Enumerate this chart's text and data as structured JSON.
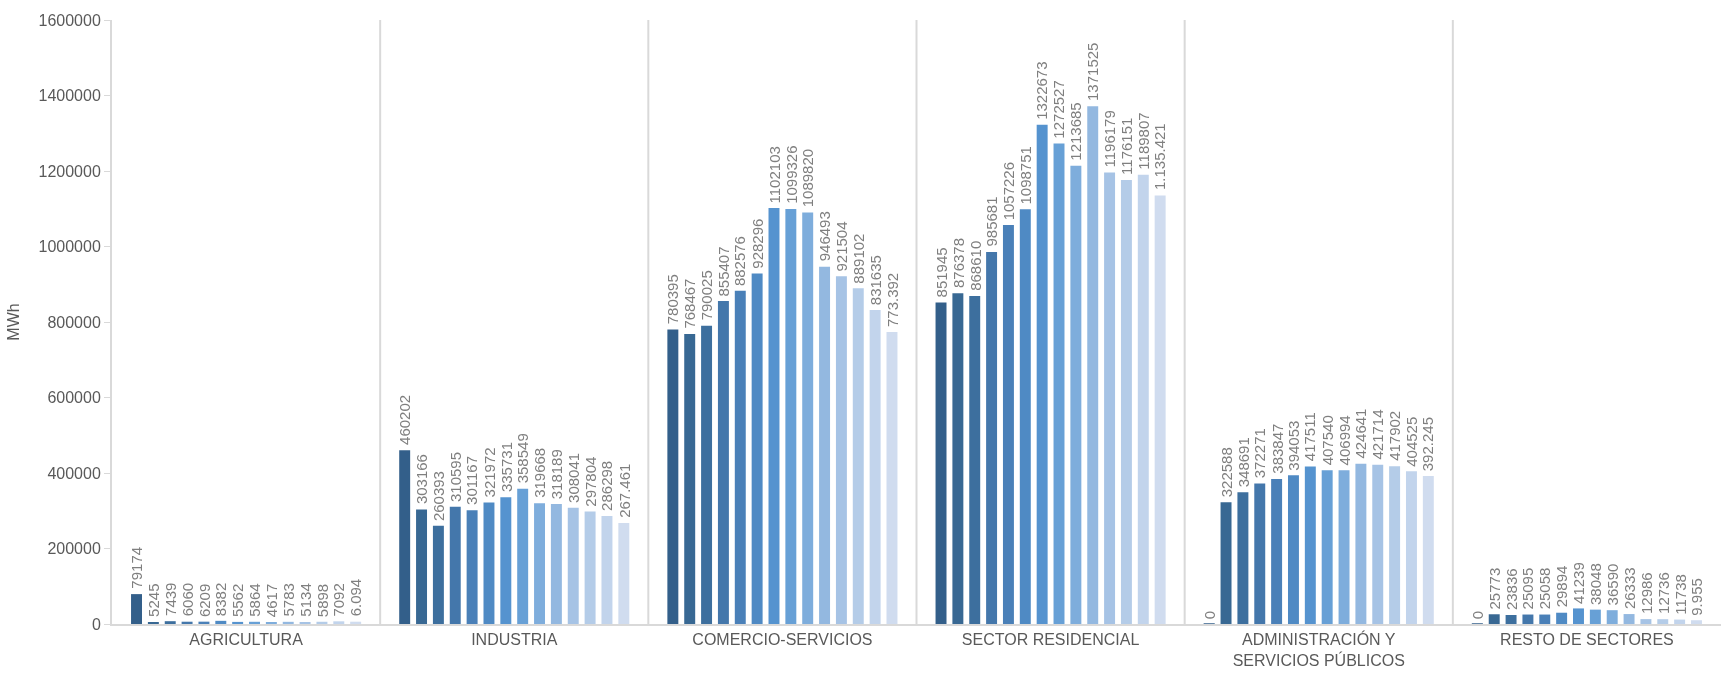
{
  "chart_data": {
    "type": "bar",
    "ylabel": "MWh",
    "categories": [
      "AGRICULTURA",
      "INDUSTRIA",
      "COMERCIO-SERVICIOS",
      "SECTOR RESIDENCIAL",
      "ADMINISTRACIÓN Y SERVICIOS PÚBLICOS",
      "RESTO DE SECTORES"
    ],
    "ylim": [
      0,
      1600000
    ],
    "yticks": [
      0,
      200000,
      400000,
      600000,
      800000,
      1000000,
      1200000,
      1400000,
      1600000
    ],
    "grid": "x",
    "data_labels": true,
    "series": [
      {
        "color": "#335f8a",
        "values": [
          79174,
          460202,
          780395,
          851945,
          0,
          0
        ],
        "value_labels": [
          "79174",
          "460202",
          "780395",
          "851945",
          "0",
          "0"
        ]
      },
      {
        "color": "#386893",
        "values": [
          5245,
          303166,
          768467,
          876378,
          322588,
          25773
        ]
      },
      {
        "color": "#3d6f9e",
        "values": [
          7439,
          260393,
          790025,
          868610,
          348691,
          23836
        ]
      },
      {
        "color": "#4477ab",
        "values": [
          6060,
          310595,
          855407,
          985681,
          372271,
          25095
        ]
      },
      {
        "color": "#4a80b8",
        "values": [
          6209,
          301167,
          882576,
          1057226,
          383847,
          25058
        ]
      },
      {
        "color": "#4f8ac4",
        "values": [
          8382,
          321972,
          928296,
          1098751,
          394053,
          29894
        ]
      },
      {
        "color": "#5593cf",
        "values": [
          5562,
          335731,
          1102103,
          1322673,
          417511,
          41239
        ]
      },
      {
        "color": "#67a0d6",
        "values": [
          5864,
          358549,
          1099326,
          1272527,
          407540,
          38048
        ]
      },
      {
        "color": "#7eaddc",
        "values": [
          4617,
          319668,
          1089820,
          1213685,
          406994,
          36590
        ]
      },
      {
        "color": "#93b8e0",
        "values": [
          5783,
          318189,
          946493,
          1371525,
          424641,
          26333
        ]
      },
      {
        "color": "#a6c3e5",
        "values": [
          5134,
          308041,
          921504,
          1196179,
          421714,
          12986
        ]
      },
      {
        "color": "#b4cce8",
        "values": [
          5898,
          297804,
          889102,
          1176151,
          417902,
          12736
        ]
      },
      {
        "color": "#c2d4ec",
        "values": [
          7092,
          286298,
          831635,
          1189807,
          404525,
          11738
        ]
      },
      {
        "color": "#d0dcef",
        "values": [
          6094,
          267461,
          773392,
          1135421,
          392245,
          9955
        ],
        "value_labels": [
          "6.094",
          "267.461",
          "773.392",
          "1.135.421",
          "392.245",
          "9.955"
        ]
      }
    ]
  }
}
